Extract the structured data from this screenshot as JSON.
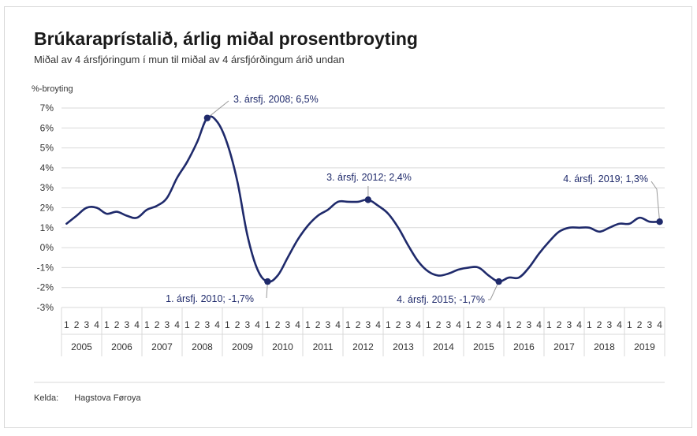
{
  "header": {
    "title": "Brúkaraprístalið, árlig miðal prosentbroyting",
    "subtitle": "Miðal av 4 ársfjóringum í mun til miðal av 4 ársfjórðingum árið undan"
  },
  "source": {
    "label": "Kelda:",
    "name": "Hagstova Føroya"
  },
  "colors": {
    "line": "#1f2a6b",
    "grid": "#d9d9d9",
    "axis_text": "#333333"
  },
  "chart_data": {
    "type": "line",
    "title": "Brúkaraprístalið, árlig miðal prosentbroyting",
    "ylabel": "%-broyting",
    "xlabel": "",
    "ylim": [
      -3,
      7
    ],
    "yticks": [
      "-3%",
      "-2%",
      "-1%",
      "0%",
      "1%",
      "2%",
      "3%",
      "4%",
      "5%",
      "6%",
      "7%"
    ],
    "grid": true,
    "years": [
      "2005",
      "2006",
      "2007",
      "2008",
      "2009",
      "2010",
      "2011",
      "2012",
      "2013",
      "2014",
      "2015",
      "2016",
      "2017",
      "2018",
      "2019"
    ],
    "quarters": [
      "1",
      "2",
      "3",
      "4"
    ],
    "series": [
      {
        "values": [
          1.2,
          1.6,
          2.0,
          2.0,
          1.7,
          1.8,
          1.6,
          1.5,
          1.9,
          2.1,
          2.5,
          3.5,
          4.3,
          5.3,
          6.5,
          6.3,
          5.2,
          3.3,
          0.6,
          -1.1,
          -1.7,
          -1.4,
          -0.5,
          0.4,
          1.1,
          1.6,
          1.9,
          2.3,
          2.3,
          2.3,
          2.4,
          2.1,
          1.7,
          1.0,
          0.1,
          -0.7,
          -1.2,
          -1.4,
          -1.3,
          -1.1,
          -1.0,
          -1.0,
          -1.4,
          -1.7,
          -1.5,
          -1.5,
          -1.0,
          -0.3,
          0.3,
          0.8,
          1.0,
          1.0,
          1.0,
          0.8,
          1.0,
          1.2,
          1.2,
          1.5,
          1.3,
          1.3
        ]
      }
    ],
    "annotations": [
      {
        "index": 14,
        "text": "3. ársfj. 2008; 6,5%"
      },
      {
        "index": 20,
        "text": "1. ársfj. 2010; -1,7%"
      },
      {
        "index": 30,
        "text": "3. ársfj. 2012; 2,4%"
      },
      {
        "index": 43,
        "text": "4. ársfj. 2015; -1,7%"
      },
      {
        "index": 59,
        "text": "4. ársfj. 2019; 1,3%"
      }
    ]
  }
}
